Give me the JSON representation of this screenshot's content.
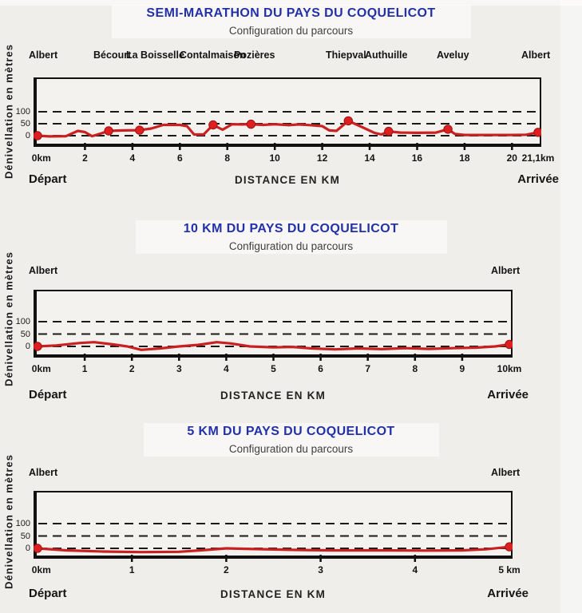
{
  "page": {
    "background": "#efeeeb"
  },
  "colors": {
    "title_blue": "#2231a8",
    "subtitle_gray": "#3f3f3f",
    "line": "#c92121",
    "marker": "#dd1f1f",
    "axis_black": "#111111",
    "plot_bg": "#f3f2ef"
  },
  "chart_data": [
    {
      "type": "line",
      "title": "SEMI-MARATHON DU PAYS DU COQUELICOT",
      "subtitle": "Configuration du parcours",
      "ylabel": "Dénivellation en mètres",
      "xlabel": "DISTANCE EN KM",
      "start_label": "Départ",
      "finish_label": "Arrivée",
      "towns": [
        "Albert",
        "Bécourt",
        "La Boisselle",
        "Contalmaison",
        "Pozières",
        "Thiepval",
        "Authuille",
        "Aveluy",
        "Albert"
      ],
      "gridlines": [
        {
          "v": 100,
          "label": "100"
        },
        {
          "v": 50,
          "label": "50"
        },
        {
          "v": 0,
          "label": "0"
        }
      ],
      "xticks": [
        {
          "v": 0,
          "label": "0km"
        },
        {
          "v": 2,
          "label": "2"
        },
        {
          "v": 4,
          "label": "4"
        },
        {
          "v": 6,
          "label": "6"
        },
        {
          "v": 8,
          "label": "8"
        },
        {
          "v": 10,
          "label": "10"
        },
        {
          "v": 12,
          "label": "12"
        },
        {
          "v": 14,
          "label": "14"
        },
        {
          "v": 16,
          "label": "16"
        },
        {
          "v": 18,
          "label": "18"
        },
        {
          "v": 20,
          "label": "20"
        },
        {
          "v": 21.1,
          "label": "21,1km"
        }
      ],
      "xlim": [
        0,
        21.1
      ],
      "ylim": [
        -50,
        240
      ],
      "grid": "dashed horizontal at 0, 50, 100 m",
      "legend": "none",
      "points": [
        [
          0,
          0
        ],
        [
          0.5,
          -3
        ],
        [
          1.2,
          -2
        ],
        [
          1.7,
          20
        ],
        [
          2.0,
          15
        ],
        [
          2.3,
          -2
        ],
        [
          2.7,
          10
        ],
        [
          3.0,
          20
        ],
        [
          3.6,
          22
        ],
        [
          4.3,
          23
        ],
        [
          4.8,
          30
        ],
        [
          5.3,
          45
        ],
        [
          6.0,
          45
        ],
        [
          6.3,
          40
        ],
        [
          6.6,
          5
        ],
        [
          7.0,
          5
        ],
        [
          7.4,
          45
        ],
        [
          7.8,
          25
        ],
        [
          8.2,
          48
        ],
        [
          8.6,
          47
        ],
        [
          9.0,
          48
        ],
        [
          9.5,
          45
        ],
        [
          10.0,
          48
        ],
        [
          10.6,
          44
        ],
        [
          11.0,
          47
        ],
        [
          11.5,
          44
        ],
        [
          12.0,
          40
        ],
        [
          12.3,
          22
        ],
        [
          12.6,
          20
        ],
        [
          13.1,
          62
        ],
        [
          13.7,
          35
        ],
        [
          14.2,
          12
        ],
        [
          14.5,
          5
        ],
        [
          14.8,
          18
        ],
        [
          15.3,
          13
        ],
        [
          16.0,
          12
        ],
        [
          16.8,
          13
        ],
        [
          17.3,
          27
        ],
        [
          17.6,
          7
        ],
        [
          18.0,
          3
        ],
        [
          19.0,
          3
        ],
        [
          20.0,
          3
        ],
        [
          20.6,
          4
        ],
        [
          21.1,
          14
        ]
      ],
      "markers": [
        [
          0,
          0
        ],
        [
          3.0,
          20
        ],
        [
          4.3,
          23
        ],
        [
          7.4,
          45
        ],
        [
          9.0,
          48
        ],
        [
          13.1,
          62
        ],
        [
          14.8,
          18
        ],
        [
          17.3,
          27
        ],
        [
          21.1,
          14
        ]
      ]
    },
    {
      "type": "line",
      "title": "10 KM DU PAYS DU COQUELICOT",
      "subtitle": "Configuration du parcours",
      "ylabel": "Dénivellation en mètres",
      "xlabel": "DISTANCE EN KM",
      "start_label": "Départ",
      "finish_label": "Arrivée",
      "towns": [
        "Albert",
        "Albert"
      ],
      "gridlines": [
        {
          "v": 100,
          "label": "100"
        },
        {
          "v": 50,
          "label": "50"
        },
        {
          "v": 0,
          "label": "0"
        }
      ],
      "xticks": [
        {
          "v": 0,
          "label": "0km"
        },
        {
          "v": 1,
          "label": "1"
        },
        {
          "v": 2,
          "label": "2"
        },
        {
          "v": 3,
          "label": "3"
        },
        {
          "v": 4,
          "label": "4"
        },
        {
          "v": 5,
          "label": "5"
        },
        {
          "v": 6,
          "label": "6"
        },
        {
          "v": 7,
          "label": "7"
        },
        {
          "v": 8,
          "label": "8"
        },
        {
          "v": 9,
          "label": "9"
        },
        {
          "v": 10,
          "label": "10km"
        }
      ],
      "xlim": [
        0,
        10
      ],
      "ylim": [
        -45,
        230
      ],
      "grid": "dashed horizontal at 0, 50, 100 m",
      "legend": "none",
      "points": [
        [
          0,
          0
        ],
        [
          0.4,
          4
        ],
        [
          0.9,
          14
        ],
        [
          1.2,
          17
        ],
        [
          1.6,
          8
        ],
        [
          1.9,
          0
        ],
        [
          2.2,
          -14
        ],
        [
          2.6,
          -8
        ],
        [
          3.0,
          0
        ],
        [
          3.4,
          6
        ],
        [
          3.8,
          17
        ],
        [
          4.1,
          12
        ],
        [
          4.5,
          0
        ],
        [
          5.0,
          -4
        ],
        [
          5.4,
          -2
        ],
        [
          5.8,
          -8
        ],
        [
          6.3,
          -12
        ],
        [
          6.8,
          -8
        ],
        [
          7.3,
          -11
        ],
        [
          7.8,
          -7
        ],
        [
          8.3,
          -10
        ],
        [
          8.8,
          -7
        ],
        [
          9.3,
          -5
        ],
        [
          9.7,
          0
        ],
        [
          10,
          8
        ]
      ],
      "markers": [
        [
          0,
          0
        ],
        [
          10,
          8
        ]
      ]
    },
    {
      "type": "line",
      "title": "5 KM DU PAYS DU COQUELICOT",
      "subtitle": "Configuration du parcours",
      "ylabel": "Dénivellation en mètres",
      "xlabel": "DISTANCE EN KM",
      "start_label": "Départ",
      "finish_label": "Arrivée",
      "towns": [
        "Albert",
        "Albert"
      ],
      "gridlines": [
        {
          "v": 100,
          "label": "100"
        },
        {
          "v": 50,
          "label": "50"
        },
        {
          "v": 0,
          "label": "0"
        }
      ],
      "xticks": [
        {
          "v": 0,
          "label": "0km"
        },
        {
          "v": 1,
          "label": "1"
        },
        {
          "v": 2,
          "label": "2"
        },
        {
          "v": 3,
          "label": "3"
        },
        {
          "v": 4,
          "label": "4"
        },
        {
          "v": 5,
          "label": "5 km"
        }
      ],
      "xlim": [
        0,
        5
      ],
      "ylim": [
        -45,
        230
      ],
      "grid": "dashed horizontal at 0, 50, 100 m",
      "legend": "none",
      "points": [
        [
          0,
          0
        ],
        [
          0.3,
          -8
        ],
        [
          0.7,
          -13
        ],
        [
          1.1,
          -15
        ],
        [
          1.5,
          -14
        ],
        [
          1.8,
          -6
        ],
        [
          2.0,
          0
        ],
        [
          2.3,
          -3
        ],
        [
          2.7,
          -6
        ],
        [
          3.1,
          -8
        ],
        [
          3.6,
          -8
        ],
        [
          4.1,
          -9
        ],
        [
          4.5,
          -8
        ],
        [
          4.75,
          -4
        ],
        [
          5,
          6
        ]
      ],
      "markers": [
        [
          0,
          0
        ],
        [
          5,
          6
        ]
      ]
    }
  ]
}
